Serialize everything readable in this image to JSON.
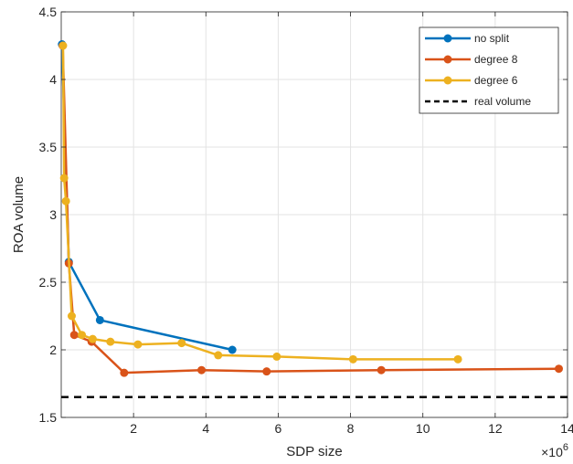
{
  "chart_data": {
    "type": "line",
    "xlabel": "SDP size",
    "ylabel": "ROA volume",
    "x_multiplier_label": "×10",
    "x_multiplier_exponent": "6",
    "xlim": [
      0,
      14
    ],
    "ylim": [
      1.5,
      4.5
    ],
    "x_ticks": [
      2,
      4,
      6,
      8,
      10,
      12,
      14
    ],
    "x_tick_labels": [
      "2",
      "4",
      "6",
      "8",
      "10",
      "12",
      "14"
    ],
    "y_ticks": [
      1.5,
      2,
      2.5,
      3,
      3.5,
      4,
      4.5
    ],
    "y_tick_labels": [
      "1.5",
      "2",
      "2.5",
      "3",
      "3.5",
      "4",
      "4.5"
    ],
    "grid": true,
    "legend_position": "top-right",
    "series": [
      {
        "name": "no split",
        "color": "#0072BD",
        "x": [
          0.02,
          0.21,
          1.07,
          4.73
        ],
        "y": [
          4.26,
          2.65,
          2.22,
          2.0
        ]
      },
      {
        "name": "degree 8",
        "color": "#D95319",
        "x": [
          0.04,
          0.21,
          0.36,
          0.84,
          1.74,
          3.88,
          5.68,
          8.85,
          13.76
        ],
        "y": [
          4.25,
          2.64,
          2.11,
          2.06,
          1.83,
          1.85,
          1.84,
          1.85,
          1.86
        ]
      },
      {
        "name": "degree 6",
        "color": "#EDB120",
        "x": [
          0.05,
          0.08,
          0.13,
          0.29,
          0.57,
          0.87,
          1.36,
          2.12,
          3.33,
          4.34,
          5.96,
          8.07,
          10.97
        ],
        "y": [
          4.25,
          3.27,
          3.1,
          2.25,
          2.11,
          2.08,
          2.06,
          2.04,
          2.05,
          1.96,
          1.95,
          1.93,
          1.93
        ]
      }
    ],
    "reference_lines": [
      {
        "name": "real volume",
        "color": "#000000",
        "style": "dashed",
        "y": 1.65
      }
    ]
  }
}
